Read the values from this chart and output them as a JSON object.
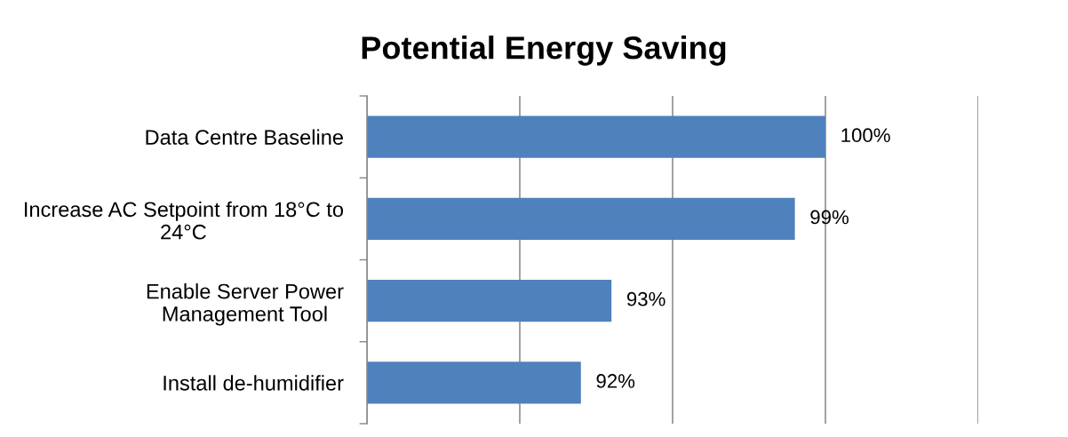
{
  "chart_data": {
    "type": "bar",
    "orientation": "horizontal",
    "title": "Potential Energy Saving",
    "categories": [
      "Data Centre Baseline",
      "Increase AC Setpoint from 18°C to 24°C",
      "Enable Server Power Management Tool",
      "Install de-humidifier"
    ],
    "values": [
      100,
      99,
      93,
      92
    ],
    "color": "#4f81bd",
    "value_labels": [
      "100%",
      "99%",
      "93%",
      "92%"
    ],
    "xlim": [
      85,
      105
    ],
    "xticks": [
      {
        "value": 85,
        "label": null
      },
      {
        "value": 90,
        "label": null
      },
      {
        "value": 95,
        "label": null
      },
      {
        "value": 100,
        "label": null
      },
      {
        "value": 105,
        "label": null
      }
    ],
    "grid": "x",
    "tick_labels": "y"
  }
}
